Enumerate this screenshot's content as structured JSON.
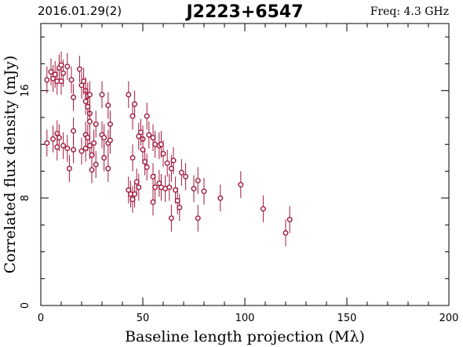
{
  "header": {
    "date": "2016.01.29(2)",
    "source": "J2223+6547",
    "freq": "Freq: 4.3 GHz"
  },
  "colors": {
    "accent": "#a0183c",
    "axis": "#000000"
  },
  "chart_data": {
    "type": "scatter",
    "title": "J2223+6547",
    "xlabel": "Baseline length projection (Mλ)",
    "ylabel": "Correlated flux density (mJy)",
    "xlim": [
      0,
      200
    ],
    "ylim": [
      0,
      21
    ],
    "x_ticks": [
      0,
      50,
      100,
      150,
      200
    ],
    "y_ticks": [
      0,
      8,
      16
    ],
    "grid": false,
    "marker": "open-circle-with-error-bars",
    "points": [
      {
        "x": 3,
        "y": 16.8,
        "err": 1.0
      },
      {
        "x": 5,
        "y": 17.4,
        "err": 1.0
      },
      {
        "x": 6,
        "y": 16.9,
        "err": 1.0
      },
      {
        "x": 7,
        "y": 17.2,
        "err": 1.0
      },
      {
        "x": 8,
        "y": 16.7,
        "err": 1.0
      },
      {
        "x": 9,
        "y": 17.7,
        "err": 1.0
      },
      {
        "x": 10,
        "y": 17.9,
        "err": 1.0
      },
      {
        "x": 11,
        "y": 17.3,
        "err": 1.0
      },
      {
        "x": 13,
        "y": 17.8,
        "err": 1.0
      },
      {
        "x": 15,
        "y": 16.8,
        "err": 1.0
      },
      {
        "x": 10,
        "y": 16.7,
        "err": 1.0
      },
      {
        "x": 16,
        "y": 15.5,
        "err": 1.0
      },
      {
        "x": 19,
        "y": 17.6,
        "err": 1.0
      },
      {
        "x": 20,
        "y": 16.4,
        "err": 1.0
      },
      {
        "x": 21,
        "y": 16.7,
        "err": 1.0
      },
      {
        "x": 22,
        "y": 16.0,
        "err": 1.0
      },
      {
        "x": 23,
        "y": 15.6,
        "err": 1.0
      },
      {
        "x": 24,
        "y": 15.7,
        "err": 1.0
      },
      {
        "x": 22,
        "y": 15.2,
        "err": 1.0
      },
      {
        "x": 23,
        "y": 14.8,
        "err": 1.0
      },
      {
        "x": 24,
        "y": 14.3,
        "err": 1.0
      },
      {
        "x": 24,
        "y": 13.7,
        "err": 1.0
      },
      {
        "x": 30,
        "y": 15.7,
        "err": 1.0
      },
      {
        "x": 33,
        "y": 14.9,
        "err": 1.0
      },
      {
        "x": 43,
        "y": 15.7,
        "err": 1.0
      },
      {
        "x": 46,
        "y": 15.0,
        "err": 1.0
      },
      {
        "x": 45,
        "y": 14.1,
        "err": 1.0
      },
      {
        "x": 52,
        "y": 14.1,
        "err": 1.0
      },
      {
        "x": 3,
        "y": 12.1,
        "err": 1.0
      },
      {
        "x": 6,
        "y": 12.4,
        "err": 1.0
      },
      {
        "x": 8,
        "y": 12.8,
        "err": 1.0
      },
      {
        "x": 9,
        "y": 12.5,
        "err": 1.0
      },
      {
        "x": 11,
        "y": 11.9,
        "err": 1.0
      },
      {
        "x": 8,
        "y": 11.8,
        "err": 1.0
      },
      {
        "x": 13,
        "y": 11.7,
        "err": 1.0
      },
      {
        "x": 16,
        "y": 13.0,
        "err": 1.0
      },
      {
        "x": 16,
        "y": 11.6,
        "err": 1.0
      },
      {
        "x": 20,
        "y": 11.5,
        "err": 1.0
      },
      {
        "x": 22,
        "y": 12.7,
        "err": 1.0
      },
      {
        "x": 23,
        "y": 12.5,
        "err": 1.0
      },
      {
        "x": 24,
        "y": 11.9,
        "err": 1.0
      },
      {
        "x": 26,
        "y": 12.1,
        "err": 1.0
      },
      {
        "x": 27,
        "y": 13.5,
        "err": 1.0
      },
      {
        "x": 30,
        "y": 12.7,
        "err": 1.0
      },
      {
        "x": 31,
        "y": 12.5,
        "err": 1.0
      },
      {
        "x": 33,
        "y": 12.1,
        "err": 1.0
      },
      {
        "x": 34,
        "y": 13.5,
        "err": 1.0
      },
      {
        "x": 34,
        "y": 12.3,
        "err": 1.0
      },
      {
        "x": 14,
        "y": 10.2,
        "err": 1.0
      },
      {
        "x": 22,
        "y": 11.7,
        "err": 1.0
      },
      {
        "x": 25,
        "y": 11.2,
        "err": 1.0
      },
      {
        "x": 25,
        "y": 10.1,
        "err": 1.0
      },
      {
        "x": 27,
        "y": 10.5,
        "err": 1.0
      },
      {
        "x": 31,
        "y": 11.0,
        "err": 1.0
      },
      {
        "x": 33,
        "y": 10.2,
        "err": 1.0
      },
      {
        "x": 45,
        "y": 11.0,
        "err": 1.0
      },
      {
        "x": 48,
        "y": 12.6,
        "err": 1.0
      },
      {
        "x": 49,
        "y": 12.9,
        "err": 1.0
      },
      {
        "x": 50,
        "y": 12.4,
        "err": 1.0
      },
      {
        "x": 50,
        "y": 11.6,
        "err": 1.0
      },
      {
        "x": 51,
        "y": 10.7,
        "err": 1.0
      },
      {
        "x": 53,
        "y": 12.7,
        "err": 1.0
      },
      {
        "x": 55,
        "y": 12.5,
        "err": 1.0
      },
      {
        "x": 56,
        "y": 12.0,
        "err": 1.0
      },
      {
        "x": 58,
        "y": 11.9,
        "err": 1.0
      },
      {
        "x": 59,
        "y": 12.0,
        "err": 1.0
      },
      {
        "x": 60,
        "y": 11.3,
        "err": 1.0
      },
      {
        "x": 62,
        "y": 10.6,
        "err": 1.0
      },
      {
        "x": 64,
        "y": 10.2,
        "err": 1.0
      },
      {
        "x": 65,
        "y": 10.8,
        "err": 1.0
      },
      {
        "x": 52,
        "y": 10.3,
        "err": 1.0
      },
      {
        "x": 55,
        "y": 9.6,
        "err": 1.0
      },
      {
        "x": 43,
        "y": 8.6,
        "err": 1.0
      },
      {
        "x": 44,
        "y": 8.3,
        "err": 1.0
      },
      {
        "x": 46,
        "y": 8.3,
        "err": 1.0
      },
      {
        "x": 47,
        "y": 9.2,
        "err": 1.0
      },
      {
        "x": 48,
        "y": 8.8,
        "err": 1.0
      },
      {
        "x": 56,
        "y": 8.8,
        "err": 1.0
      },
      {
        "x": 58,
        "y": 9.1,
        "err": 1.0
      },
      {
        "x": 59,
        "y": 8.8,
        "err": 1.0
      },
      {
        "x": 61,
        "y": 8.7,
        "err": 1.0
      },
      {
        "x": 63,
        "y": 8.8,
        "err": 1.0
      },
      {
        "x": 66,
        "y": 8.6,
        "err": 1.0
      },
      {
        "x": 68,
        "y": 7.3,
        "err": 1.0
      },
      {
        "x": 69,
        "y": 9.9,
        "err": 1.0
      },
      {
        "x": 71,
        "y": 9.6,
        "err": 1.0
      },
      {
        "x": 75,
        "y": 8.7,
        "err": 1.0
      },
      {
        "x": 77,
        "y": 9.3,
        "err": 1.0
      },
      {
        "x": 80,
        "y": 8.5,
        "err": 1.0
      },
      {
        "x": 88,
        "y": 8.0,
        "err": 1.0
      },
      {
        "x": 98,
        "y": 9.0,
        "err": 1.0
      },
      {
        "x": 109,
        "y": 7.2,
        "err": 1.0
      },
      {
        "x": 120,
        "y": 5.4,
        "err": 1.0
      },
      {
        "x": 122,
        "y": 6.4,
        "err": 1.0
      },
      {
        "x": 45,
        "y": 7.9,
        "err": 1.0
      },
      {
        "x": 55,
        "y": 7.7,
        "err": 1.0
      },
      {
        "x": 64,
        "y": 6.5,
        "err": 1.0
      },
      {
        "x": 67,
        "y": 7.8,
        "err": 1.0
      },
      {
        "x": 77,
        "y": 6.5,
        "err": 1.0
      }
    ]
  }
}
